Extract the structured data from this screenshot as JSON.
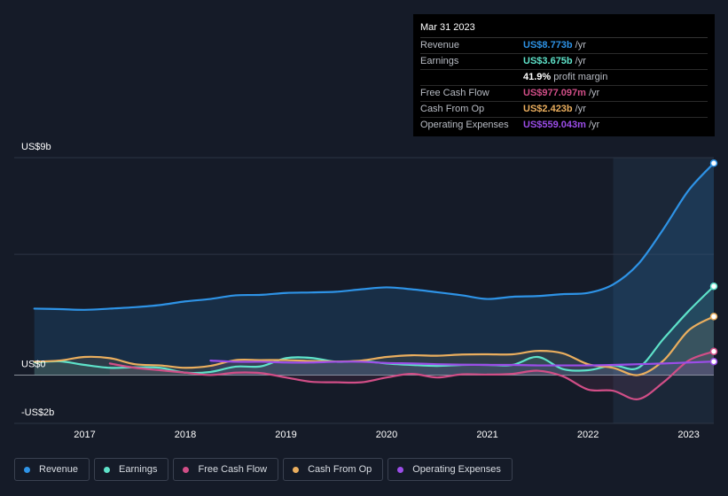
{
  "tooltip": {
    "date": "Mar 31 2023",
    "rows": [
      {
        "label": "Revenue",
        "value": "US$8.773b",
        "unit": "/yr",
        "color": "#2e93e6"
      },
      {
        "label": "Earnings",
        "value": "US$3.675b",
        "unit": "/yr",
        "color": "#5ee2c9"
      },
      {
        "label": "",
        "value": "41.9%",
        "unit": "profit margin",
        "color": "#ffffff"
      },
      {
        "label": "Free Cash Flow",
        "value": "US$977.097m",
        "unit": "/yr",
        "color": "#d14e87"
      },
      {
        "label": "Cash From Op",
        "value": "US$2.423b",
        "unit": "/yr",
        "color": "#eaae5e"
      },
      {
        "label": "Operating Expenses",
        "value": "US$559.043m",
        "unit": "/yr",
        "color": "#9b4de8"
      }
    ]
  },
  "legend": [
    {
      "label": "Revenue",
      "color": "#2e93e6"
    },
    {
      "label": "Earnings",
      "color": "#5ee2c9"
    },
    {
      "label": "Free Cash Flow",
      "color": "#d14e87"
    },
    {
      "label": "Cash From Op",
      "color": "#eaae5e"
    },
    {
      "label": "Operating Expenses",
      "color": "#9b4de8"
    }
  ],
  "chart_data": {
    "type": "line",
    "y_unit": "US$ billions",
    "ylim": [
      -2,
      9
    ],
    "y_tick_labels": [
      {
        "value": 9,
        "label": "US$9b"
      },
      {
        "value": 0,
        "label": "US$0"
      },
      {
        "value": -2,
        "label": "-US$2b"
      }
    ],
    "x_tick_labels": [
      "2017",
      "2018",
      "2019",
      "2020",
      "2021",
      "2022",
      "2023"
    ],
    "x_tick_values": [
      2017.0,
      2018.0,
      2019.0,
      2020.0,
      2021.0,
      2022.0,
      2023.0
    ],
    "xlim": [
      2016.3,
      2023.25
    ],
    "highlight_from": 2022.25,
    "grid": true,
    "legend_position": "bottom",
    "series": [
      {
        "name": "Revenue",
        "color": "#2e93e6",
        "fill": true,
        "points": [
          [
            2016.5,
            2.75
          ],
          [
            2016.75,
            2.73
          ],
          [
            2017.0,
            2.7
          ],
          [
            2017.25,
            2.75
          ],
          [
            2017.5,
            2.81
          ],
          [
            2017.75,
            2.9
          ],
          [
            2018.0,
            3.05
          ],
          [
            2018.25,
            3.15
          ],
          [
            2018.5,
            3.3
          ],
          [
            2018.75,
            3.32
          ],
          [
            2019.0,
            3.4
          ],
          [
            2019.25,
            3.42
          ],
          [
            2019.5,
            3.45
          ],
          [
            2019.75,
            3.55
          ],
          [
            2020.0,
            3.63
          ],
          [
            2020.25,
            3.55
          ],
          [
            2020.5,
            3.43
          ],
          [
            2020.75,
            3.3
          ],
          [
            2021.0,
            3.15
          ],
          [
            2021.25,
            3.24
          ],
          [
            2021.5,
            3.27
          ],
          [
            2021.75,
            3.35
          ],
          [
            2022.0,
            3.4
          ],
          [
            2022.25,
            3.75
          ],
          [
            2022.5,
            4.6
          ],
          [
            2022.75,
            6.05
          ],
          [
            2023.0,
            7.65
          ],
          [
            2023.25,
            8.77
          ]
        ]
      },
      {
        "name": "Earnings",
        "color": "#5ee2c9",
        "fill": false,
        "points": [
          [
            2016.5,
            0.52
          ],
          [
            2016.75,
            0.57
          ],
          [
            2017.0,
            0.42
          ],
          [
            2017.25,
            0.3
          ],
          [
            2017.5,
            0.32
          ],
          [
            2017.75,
            0.3
          ],
          [
            2018.0,
            0.1
          ],
          [
            2018.25,
            0.13
          ],
          [
            2018.5,
            0.35
          ],
          [
            2018.75,
            0.36
          ],
          [
            2019.0,
            0.7
          ],
          [
            2019.25,
            0.71
          ],
          [
            2019.5,
            0.55
          ],
          [
            2019.75,
            0.58
          ],
          [
            2020.0,
            0.48
          ],
          [
            2020.25,
            0.42
          ],
          [
            2020.5,
            0.38
          ],
          [
            2020.75,
            0.42
          ],
          [
            2021.0,
            0.42
          ],
          [
            2021.25,
            0.42
          ],
          [
            2021.5,
            0.75
          ],
          [
            2021.75,
            0.25
          ],
          [
            2022.0,
            0.2
          ],
          [
            2022.25,
            0.4
          ],
          [
            2022.5,
            0.3
          ],
          [
            2022.75,
            1.5
          ],
          [
            2023.0,
            2.65
          ],
          [
            2023.25,
            3.675
          ]
        ]
      },
      {
        "name": "Free Cash Flow",
        "color": "#d14e87",
        "fill": false,
        "points": [
          [
            2017.25,
            0.48
          ],
          [
            2017.5,
            0.3
          ],
          [
            2017.75,
            0.2
          ],
          [
            2018.0,
            0.1
          ],
          [
            2018.25,
            0.0
          ],
          [
            2018.5,
            0.1
          ],
          [
            2018.75,
            0.08
          ],
          [
            2019.0,
            -0.1
          ],
          [
            2019.25,
            -0.28
          ],
          [
            2019.5,
            -0.3
          ],
          [
            2019.75,
            -0.3
          ],
          [
            2020.0,
            -0.1
          ],
          [
            2020.25,
            0.05
          ],
          [
            2020.5,
            -0.1
          ],
          [
            2020.75,
            0.03
          ],
          [
            2021.0,
            0.02
          ],
          [
            2021.25,
            0.05
          ],
          [
            2021.5,
            0.18
          ],
          [
            2021.75,
            -0.05
          ],
          [
            2022.0,
            -0.6
          ],
          [
            2022.25,
            -0.65
          ],
          [
            2022.5,
            -1.0
          ],
          [
            2022.75,
            -0.3
          ],
          [
            2023.0,
            0.6
          ],
          [
            2023.25,
            0.977
          ]
        ]
      },
      {
        "name": "Cash From Op",
        "color": "#eaae5e",
        "fill": false,
        "points": [
          [
            2016.5,
            0.55
          ],
          [
            2016.75,
            0.6
          ],
          [
            2017.0,
            0.75
          ],
          [
            2017.25,
            0.7
          ],
          [
            2017.5,
            0.45
          ],
          [
            2017.75,
            0.4
          ],
          [
            2018.0,
            0.3
          ],
          [
            2018.25,
            0.38
          ],
          [
            2018.5,
            0.62
          ],
          [
            2018.75,
            0.62
          ],
          [
            2019.0,
            0.62
          ],
          [
            2019.25,
            0.58
          ],
          [
            2019.5,
            0.56
          ],
          [
            2019.75,
            0.6
          ],
          [
            2020.0,
            0.75
          ],
          [
            2020.25,
            0.82
          ],
          [
            2020.5,
            0.8
          ],
          [
            2020.75,
            0.85
          ],
          [
            2021.0,
            0.86
          ],
          [
            2021.25,
            0.86
          ],
          [
            2021.5,
            1.0
          ],
          [
            2021.75,
            0.9
          ],
          [
            2022.0,
            0.45
          ],
          [
            2022.25,
            0.3
          ],
          [
            2022.5,
            0.0
          ],
          [
            2022.75,
            0.6
          ],
          [
            2023.0,
            1.85
          ],
          [
            2023.25,
            2.423
          ]
        ]
      },
      {
        "name": "Operating Expenses",
        "color": "#9b4de8",
        "fill": false,
        "points": [
          [
            2018.25,
            0.6
          ],
          [
            2018.5,
            0.55
          ],
          [
            2018.75,
            0.55
          ],
          [
            2019.0,
            0.52
          ],
          [
            2019.25,
            0.52
          ],
          [
            2019.5,
            0.55
          ],
          [
            2019.75,
            0.55
          ],
          [
            2020.0,
            0.5
          ],
          [
            2020.25,
            0.48
          ],
          [
            2020.5,
            0.45
          ],
          [
            2020.75,
            0.43
          ],
          [
            2021.0,
            0.42
          ],
          [
            2021.25,
            0.42
          ],
          [
            2021.5,
            0.4
          ],
          [
            2021.75,
            0.4
          ],
          [
            2022.0,
            0.4
          ],
          [
            2022.25,
            0.42
          ],
          [
            2022.5,
            0.45
          ],
          [
            2022.75,
            0.48
          ],
          [
            2023.0,
            0.52
          ],
          [
            2023.25,
            0.559
          ]
        ]
      }
    ]
  }
}
